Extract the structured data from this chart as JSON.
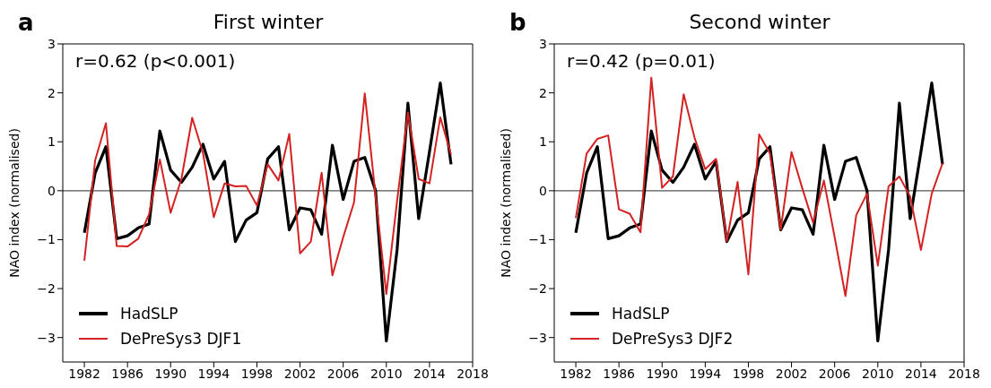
{
  "chart_data": [
    {
      "type": "line",
      "title": "First winter",
      "ylabel": "NAO index (normalised)",
      "annotations": [
        "a",
        "r=0.62 (p<0.001)"
      ],
      "x": [
        1982,
        1983,
        1984,
        1985,
        1986,
        1987,
        1988,
        1989,
        1990,
        1991,
        1992,
        1993,
        1994,
        1995,
        1996,
        1997,
        1998,
        1999,
        2000,
        2001,
        2002,
        2003,
        2004,
        2005,
        2006,
        2007,
        2008,
        2009,
        2010,
        2011,
        2012,
        2013,
        2014,
        2015,
        2016
      ],
      "series": [
        {
          "name": "HadSLP",
          "color": "#000000",
          "values": [
            -0.86,
            0.36,
            0.9,
            -0.98,
            -0.92,
            -0.76,
            -0.68,
            1.22,
            0.42,
            0.17,
            0.48,
            0.95,
            0.24,
            0.6,
            -1.04,
            -0.6,
            -0.45,
            0.65,
            0.9,
            -0.8,
            -0.35,
            -0.39,
            -0.89,
            0.93,
            -0.18,
            0.6,
            0.68,
            0,
            -3.07,
            -1.2,
            1.79,
            -0.57,
            0.8,
            2.2,
            0.54
          ]
        },
        {
          "name": "DePreSys3 DJF1",
          "color": "#d42222",
          "values": [
            -1.43,
            0.62,
            1.38,
            -1.13,
            -1.14,
            -0.98,
            -0.48,
            0.64,
            -0.45,
            0.24,
            1.49,
            0.77,
            -0.54,
            0.15,
            0.09,
            0.1,
            -0.3,
            0.54,
            0.21,
            1.16,
            -1.28,
            -1.04,
            0.37,
            -1.73,
            -0.95,
            -0.24,
            1.99,
            -0.1,
            -2.11,
            -0.2,
            1.6,
            0.24,
            0.15,
            1.5,
            0.74
          ]
        }
      ],
      "xlim": [
        1980,
        2018
      ],
      "xticks": [
        1982,
        1986,
        1990,
        1994,
        1998,
        2002,
        2006,
        2010,
        2014,
        2018
      ],
      "ylim": [
        -3.5,
        3
      ],
      "yticks": [
        {
          "value": -3,
          "label": "−3"
        },
        {
          "value": -2,
          "label": "−2"
        },
        {
          "value": -1,
          "label": "−1"
        },
        0,
        1,
        2,
        3
      ],
      "ref_lines": [
        {
          "axis": "y",
          "value": 0,
          "color": "#555555"
        }
      ],
      "legend": "bottom left",
      "marker": "none",
      "line_style": "solid",
      "grid": false
    },
    {
      "type": "line",
      "title": "Second winter",
      "ylabel": "NAO index (normalised)",
      "annotations": [
        "b",
        "r=0.42 (p=0.01)"
      ],
      "x": [
        1982,
        1983,
        1984,
        1985,
        1986,
        1987,
        1988,
        1989,
        1990,
        1991,
        1992,
        1993,
        1994,
        1995,
        1996,
        1997,
        1998,
        1999,
        2000,
        2001,
        2002,
        2003,
        2004,
        2005,
        2006,
        2007,
        2008,
        2009,
        2010,
        2011,
        2012,
        2013,
        2014,
        2015,
        2016
      ],
      "series": [
        {
          "name": "HadSLP",
          "color": "#000000",
          "values": [
            -0.86,
            0.36,
            0.9,
            -0.98,
            -0.92,
            -0.76,
            -0.68,
            1.22,
            0.42,
            0.17,
            0.48,
            0.95,
            0.24,
            0.6,
            -1.04,
            -0.6,
            -0.45,
            0.65,
            0.9,
            -0.8,
            -0.35,
            -0.39,
            -0.89,
            0.93,
            -0.18,
            0.6,
            0.68,
            0,
            -3.07,
            -1.2,
            1.79,
            -0.57,
            0.8,
            2.2,
            0.54
          ]
        },
        {
          "name": "DePreSys3 DJF2",
          "color": "#d42222",
          "values": [
            -0.56,
            0.76,
            1.06,
            1.13,
            -0.38,
            -0.47,
            -0.85,
            2.31,
            0.06,
            0.29,
            1.97,
            1.09,
            0.44,
            0.65,
            -1.03,
            0.18,
            -1.71,
            1.15,
            0.76,
            -0.79,
            0.79,
            0.05,
            -0.65,
            0.21,
            -0.95,
            -2.15,
            -0.5,
            -0.06,
            -1.53,
            0.09,
            0.29,
            -0.12,
            -1.21,
            -0.06,
            0.56
          ]
        }
      ],
      "xlim": [
        1980,
        2018
      ],
      "xticks": [
        1982,
        1986,
        1990,
        1994,
        1998,
        2002,
        2006,
        2010,
        2014,
        2018
      ],
      "ylim": [
        -3.5,
        3
      ],
      "yticks": [
        {
          "value": -3,
          "label": "−3"
        },
        {
          "value": -2,
          "label": "−2"
        },
        {
          "value": -1,
          "label": "−1"
        },
        0,
        1,
        2,
        3
      ],
      "ref_lines": [
        {
          "axis": "y",
          "value": 0,
          "color": "#555555"
        }
      ],
      "legend": "bottom left",
      "marker": "none",
      "line_style": "solid",
      "grid": false
    }
  ]
}
